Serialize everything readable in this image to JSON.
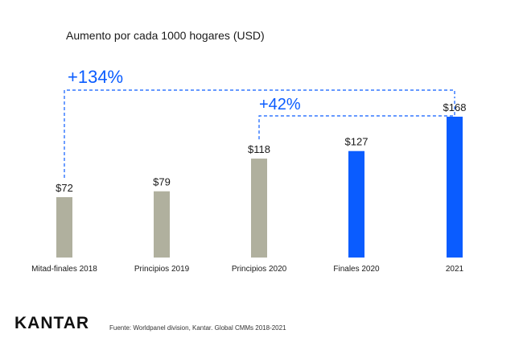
{
  "colors": {
    "past_bar": "#b0b09e",
    "recent_bar": "#0a5cff",
    "annotation": "#0a5cff",
    "text": "#1a1a1a"
  },
  "footer": {
    "brand": "KANTAR",
    "source": "Fuente: Worldpanel division, Kantar. Global CMMs 2018-2021"
  },
  "chart_data": {
    "type": "bar",
    "title": "Aumento por cada 1000 hogares (USD)",
    "categories": [
      "Mitad-finales 2018",
      "Principios 2019",
      "Principios 2020",
      "Finales 2020",
      "2021"
    ],
    "values": [
      72,
      79,
      118,
      127,
      168
    ],
    "value_labels": [
      "$72",
      "$79",
      "$118",
      "$127",
      "$168"
    ],
    "bar_color_groups": [
      "past",
      "past",
      "past",
      "recent",
      "recent"
    ],
    "ylim": [
      0,
      168
    ],
    "grid": false,
    "annotations": [
      {
        "label": "+134%",
        "from_index": 0,
        "to_index": 4
      },
      {
        "label": "+42%",
        "from_index": 2,
        "to_index": 4
      }
    ]
  }
}
